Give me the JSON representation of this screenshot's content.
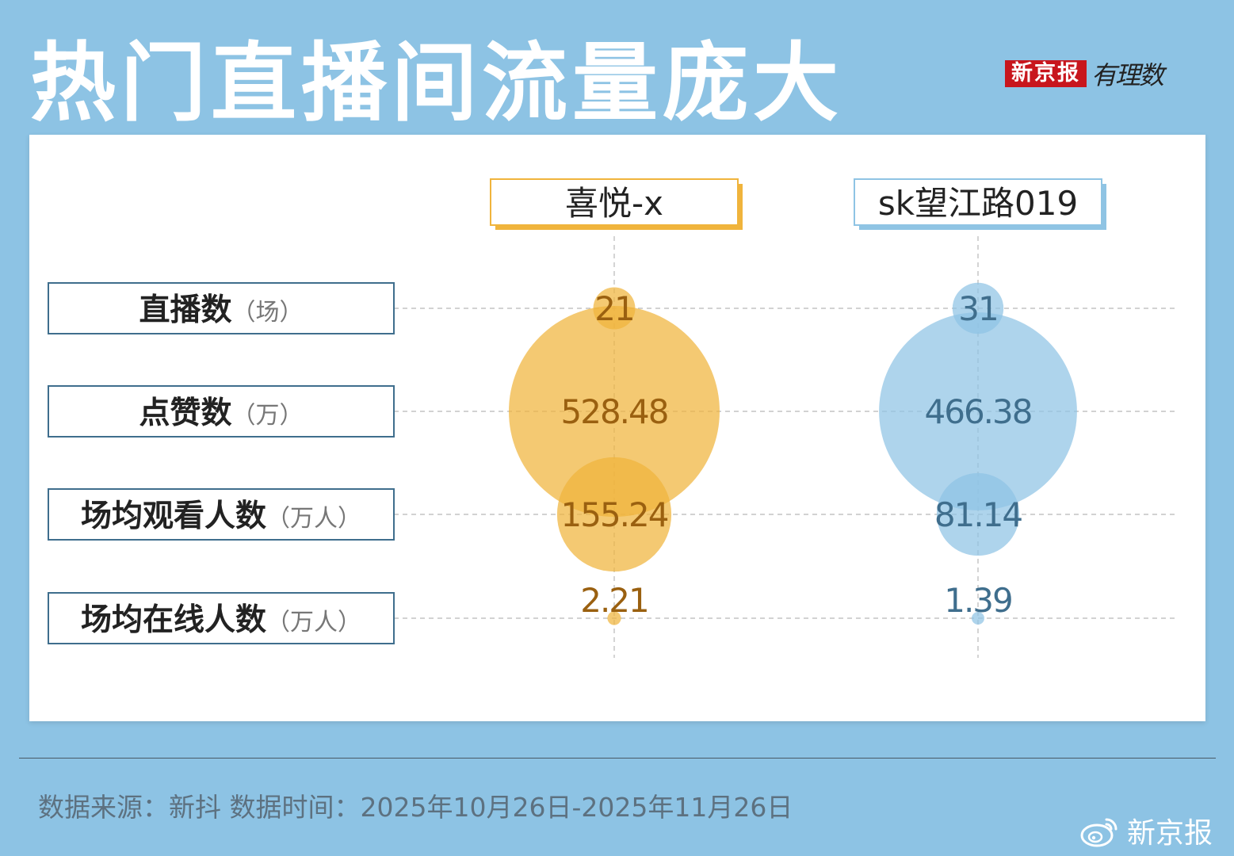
{
  "header": {
    "title": "热门直播间流量庞大",
    "logo_box_text": "新京报",
    "logo_script_text": "有理数"
  },
  "colors": {
    "background": "#8dc3e4",
    "series_1": "#f0b43c",
    "series_1_text": "#9a6010",
    "series_2": "#8fc4e4",
    "series_2_text": "#3f6e8d"
  },
  "chart_data": {
    "type": "bubble",
    "series": [
      {
        "name": "喜悦-x",
        "values": [
          21,
          528.48,
          155.24,
          2.21
        ]
      },
      {
        "name": "sk望江路019",
        "values": [
          31,
          466.38,
          81.14,
          1.39
        ]
      }
    ],
    "rows": [
      {
        "label": "直播数",
        "unit": "（场）"
      },
      {
        "label": "点赞数",
        "unit": "（万）"
      },
      {
        "label": "场均观看人数",
        "unit": "（万人）"
      },
      {
        "label": "场均在线人数",
        "unit": "（万人）"
      }
    ],
    "value_labels": [
      [
        "21",
        "528.48",
        "155.24",
        "2.21"
      ],
      [
        "31",
        "466.38",
        "81.14",
        "1.39"
      ]
    ],
    "grid": true
  },
  "footer": {
    "source": "数据来源：新抖  数据时间：2025年10月26日-2025年11月26日",
    "watermark_text": "新京报",
    "watermark_icon": "weibo-icon"
  }
}
